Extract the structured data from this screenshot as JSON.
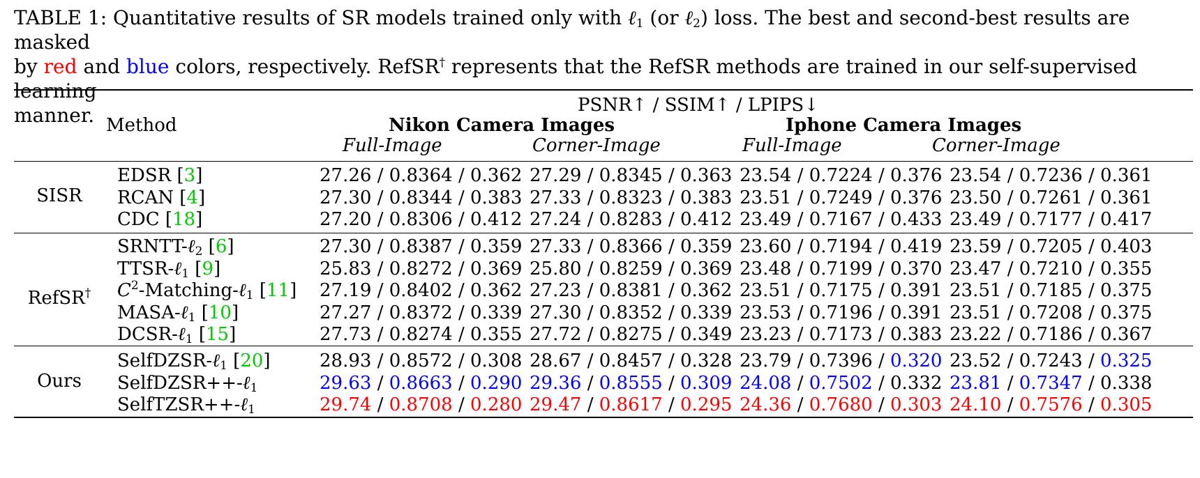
{
  "caption": {
    "line1_prefix": "TABLE 1: Quantitative results of SR models trained only with ",
    "l1": "ℓ",
    "l1_sub": "1",
    "or_text": " (or ",
    "l2": "ℓ",
    "l2_sub": "2",
    "line1_suffix": ") loss. The best and second-best results are masked",
    "line2_by": "by ",
    "red_word": "red",
    "and_word": " and ",
    "blue_word": "blue",
    "line2_rest": " colors, respectively. RefSR",
    "dagger": "†",
    "line2_end": " represents that the RefSR methods are trained in our self-supervised learning",
    "line3": "manner."
  },
  "header": {
    "metrics": "PSNR↑ / SSIM↑ / LPIPS↓",
    "method": "Method",
    "nikon": "Nikon Camera Images",
    "iphone": "Iphone Camera Images",
    "full": "Full-Image",
    "corner": "Corner-Image"
  },
  "groups": [
    {
      "name": "SISR",
      "rows": [
        {
          "method": "EDSR",
          "cite": "3",
          "cells": [
            [
              "27.26",
              "0.8364",
              "0.362"
            ],
            [
              "27.29",
              "0.8345",
              "0.363"
            ],
            [
              "23.54",
              "0.7224",
              "0.376"
            ],
            [
              "23.54",
              "0.7236",
              "0.361"
            ]
          ]
        },
        {
          "method": "RCAN",
          "cite": "4",
          "cells": [
            [
              "27.30",
              "0.8344",
              "0.383"
            ],
            [
              "27.33",
              "0.8323",
              "0.383"
            ],
            [
              "23.51",
              "0.7249",
              "0.376"
            ],
            [
              "23.50",
              "0.7261",
              "0.361"
            ]
          ]
        },
        {
          "method": "CDC",
          "cite": "18",
          "cells": [
            [
              "27.20",
              "0.8306",
              "0.412"
            ],
            [
              "27.24",
              "0.8283",
              "0.412"
            ],
            [
              "23.49",
              "0.7167",
              "0.433"
            ],
            [
              "23.49",
              "0.7177",
              "0.417"
            ]
          ]
        }
      ]
    },
    {
      "name": "RefSR",
      "name_sup": "†",
      "rows": [
        {
          "method": "SRNTT-",
          "sym": "ℓ",
          "sub": "2",
          "cite": "6",
          "cells": [
            [
              "27.30",
              "0.8387",
              "0.359"
            ],
            [
              "27.33",
              "0.8366",
              "0.359"
            ],
            [
              "23.60",
              "0.7194",
              "0.419"
            ],
            [
              "23.59",
              "0.7205",
              "0.403"
            ]
          ]
        },
        {
          "method": "TTSR-",
          "sym": "ℓ",
          "sub": "1",
          "cite": "9",
          "cells": [
            [
              "25.83",
              "0.8272",
              "0.369"
            ],
            [
              "25.80",
              "0.8259",
              "0.369"
            ],
            [
              "23.48",
              "0.7199",
              "0.370"
            ],
            [
              "23.47",
              "0.7210",
              "0.355"
            ]
          ]
        },
        {
          "method": "C",
          "method_sup": "2",
          "method_rest": "-Matching-",
          "sym": "ℓ",
          "sub": "1",
          "cite": "11",
          "cells": [
            [
              "27.19",
              "0.8402",
              "0.362"
            ],
            [
              "27.23",
              "0.8381",
              "0.362"
            ],
            [
              "23.51",
              "0.7175",
              "0.391"
            ],
            [
              "23.51",
              "0.7185",
              "0.375"
            ]
          ]
        },
        {
          "method": "MASA-",
          "sym": "ℓ",
          "sub": "1",
          "cite": "10",
          "cells": [
            [
              "27.27",
              "0.8372",
              "0.339"
            ],
            [
              "27.30",
              "0.8352",
              "0.339"
            ],
            [
              "23.53",
              "0.7196",
              "0.391"
            ],
            [
              "23.51",
              "0.7208",
              "0.375"
            ]
          ]
        },
        {
          "method": "DCSR-",
          "sym": "ℓ",
          "sub": "1",
          "cite": "15",
          "cells": [
            [
              "27.73",
              "0.8274",
              "0.355"
            ],
            [
              "27.72",
              "0.8275",
              "0.349"
            ],
            [
              "23.23",
              "0.7173",
              "0.383"
            ],
            [
              "23.22",
              "0.7186",
              "0.367"
            ]
          ]
        }
      ]
    },
    {
      "name": "Ours",
      "rows": [
        {
          "method": "SelfDZSR-",
          "sym": "ℓ",
          "sub": "1",
          "cite": "20",
          "cells": [
            [
              "28.93",
              "0.8572",
              "0.308"
            ],
            [
              "28.67",
              "0.8457",
              "0.328"
            ],
            [
              "23.79",
              "0.7396",
              "0.320"
            ],
            [
              "23.52",
              "0.7243",
              "0.325"
            ]
          ],
          "marks": [
            [
              "",
              "",
              ""
            ],
            [
              "",
              "",
              ""
            ],
            [
              "",
              "",
              "second"
            ],
            [
              "",
              "",
              "second"
            ]
          ]
        },
        {
          "method": "SelfDZSR++-",
          "sym": "ℓ",
          "sub": "1",
          "cells": [
            [
              "29.63",
              "0.8663",
              "0.290"
            ],
            [
              "29.36",
              "0.8555",
              "0.309"
            ],
            [
              "24.08",
              "0.7502",
              "0.332"
            ],
            [
              "23.81",
              "0.7347",
              "0.338"
            ]
          ],
          "marks": [
            [
              "second",
              "second",
              "second"
            ],
            [
              "second",
              "second",
              "second"
            ],
            [
              "second",
              "second",
              ""
            ],
            [
              "second",
              "second",
              ""
            ]
          ]
        },
        {
          "method": "SelfTZSR++-",
          "sym": "ℓ",
          "sub": "1",
          "cells": [
            [
              "29.74",
              "0.8708",
              "0.280"
            ],
            [
              "29.47",
              "0.8617",
              "0.295"
            ],
            [
              "24.36",
              "0.7680",
              "0.303"
            ],
            [
              "24.10",
              "0.7576",
              "0.305"
            ]
          ],
          "marks": [
            [
              "best",
              "best",
              "best"
            ],
            [
              "best",
              "best",
              "best"
            ],
            [
              "best",
              "best",
              "best"
            ],
            [
              "best",
              "best",
              "best"
            ]
          ]
        }
      ]
    }
  ],
  "colors": {
    "best": "#ff0000",
    "second": "#0000ff",
    "cite": "#00cc00"
  }
}
